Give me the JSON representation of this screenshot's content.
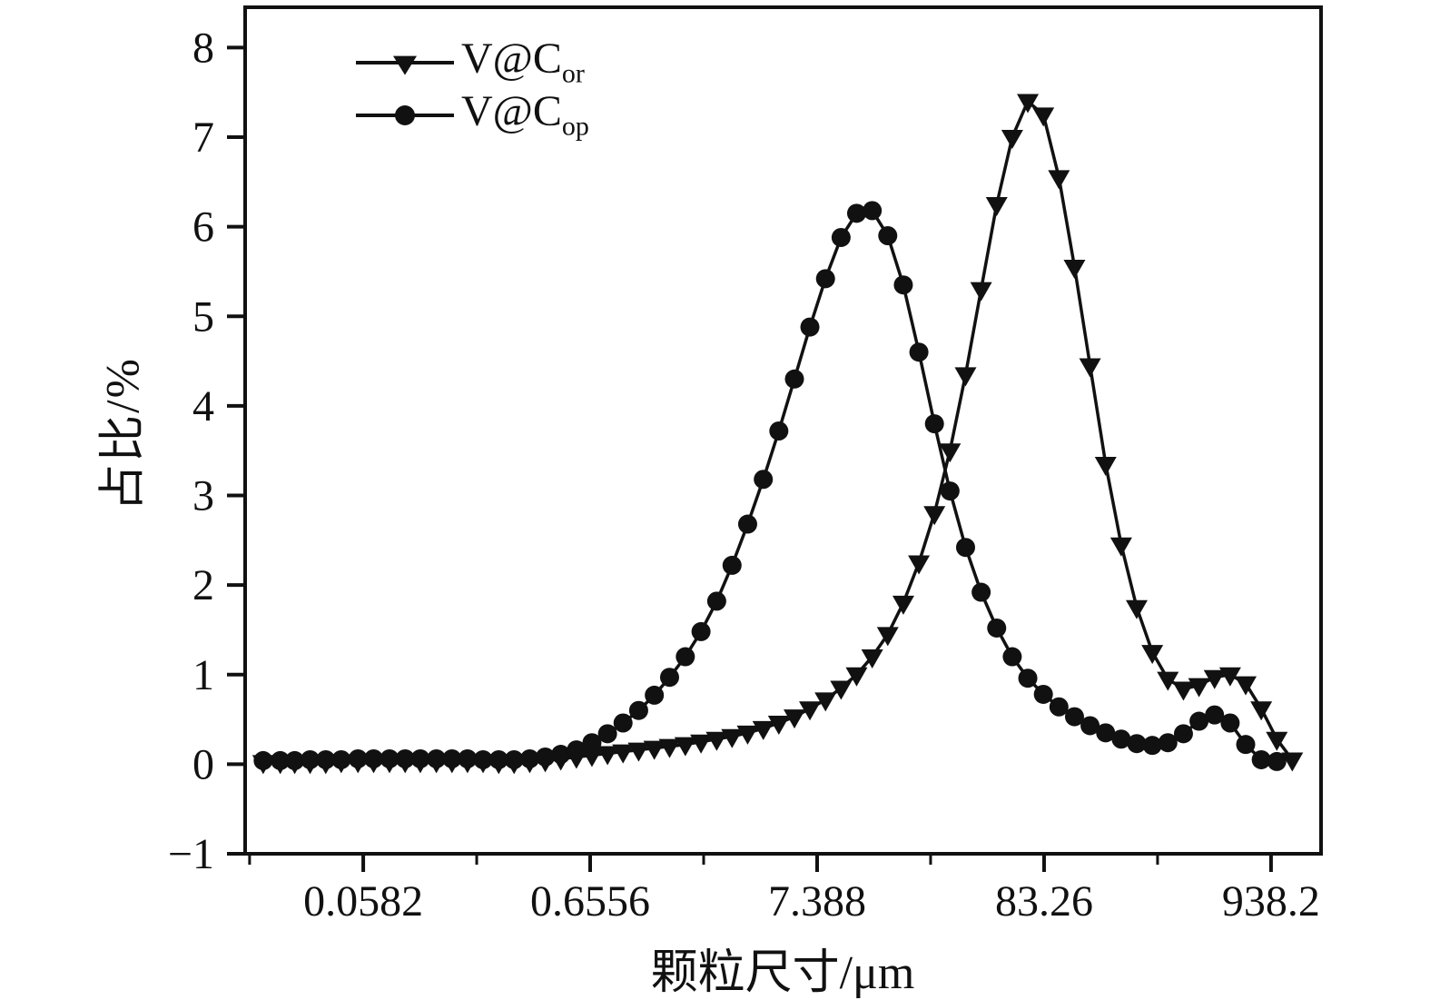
{
  "figure": {
    "background": "#ffffff",
    "line_color": "#111111"
  },
  "chart_data": {
    "type": "line",
    "title": "",
    "xlabel": "颗粒尺寸/μm",
    "ylabel": "占比/%",
    "x_scale": "log",
    "grid": false,
    "legend_position": "top-left",
    "xlim": [
      0.0165,
      1600
    ],
    "ylim": [
      -1,
      8.45
    ],
    "x_ticks": [
      0.0582,
      0.6556,
      7.388,
      83.26,
      938.2
    ],
    "x_tick_labels": [
      "0.0582",
      "0.6556",
      "7.388",
      "83.26",
      "938.2"
    ],
    "x_minor_ticks": [
      0.0173,
      0.1953,
      2.201,
      24.8,
      279.5
    ],
    "y_ticks": [
      -1,
      0,
      1,
      2,
      3,
      4,
      5,
      6,
      7,
      8
    ],
    "y_tick_labels": [
      "−1",
      "0",
      "1",
      "2",
      "3",
      "4",
      "5",
      "6",
      "7",
      "8"
    ],
    "series": [
      {
        "name": "V@C_or",
        "legend_base": "V@C",
        "legend_sub": "or",
        "marker": "triangle-down",
        "color": "#111111",
        "points": [
          [
            0.02,
            0.02
          ],
          [
            0.024,
            0.02
          ],
          [
            0.028,
            0.02
          ],
          [
            0.033,
            0.02
          ],
          [
            0.039,
            0.02
          ],
          [
            0.046,
            0.03
          ],
          [
            0.055,
            0.03
          ],
          [
            0.065,
            0.03
          ],
          [
            0.077,
            0.03
          ],
          [
            0.091,
            0.03
          ],
          [
            0.107,
            0.03
          ],
          [
            0.127,
            0.03
          ],
          [
            0.15,
            0.03
          ],
          [
            0.177,
            0.03
          ],
          [
            0.209,
            0.03
          ],
          [
            0.247,
            0.02
          ],
          [
            0.291,
            0.02
          ],
          [
            0.344,
            0.03
          ],
          [
            0.406,
            0.04
          ],
          [
            0.479,
            0.06
          ],
          [
            0.566,
            0.08
          ],
          [
            0.668,
            0.1
          ],
          [
            0.789,
            0.12
          ],
          [
            0.931,
            0.14
          ],
          [
            1.1,
            0.16
          ],
          [
            1.3,
            0.18
          ],
          [
            1.53,
            0.2
          ],
          [
            1.81,
            0.22
          ],
          [
            2.14,
            0.25
          ],
          [
            2.53,
            0.28
          ],
          [
            2.98,
            0.31
          ],
          [
            3.52,
            0.35
          ],
          [
            4.16,
            0.4
          ],
          [
            4.91,
            0.46
          ],
          [
            5.8,
            0.53
          ],
          [
            6.84,
            0.62
          ],
          [
            8.08,
            0.72
          ],
          [
            9.54,
            0.85
          ],
          [
            11.26,
            1.0
          ],
          [
            13.3,
            1.2
          ],
          [
            15.7,
            1.45
          ],
          [
            18.54,
            1.8
          ],
          [
            21.89,
            2.25
          ],
          [
            25.84,
            2.8
          ],
          [
            30.51,
            3.5
          ],
          [
            36.02,
            4.35
          ],
          [
            42.53,
            5.3
          ],
          [
            50.21,
            6.25
          ],
          [
            59.28,
            7.0
          ],
          [
            69.99,
            7.4
          ],
          [
            82.63,
            7.25
          ],
          [
            97.56,
            6.55
          ],
          [
            115.2,
            5.55
          ],
          [
            136.0,
            4.45
          ],
          [
            160.6,
            3.35
          ],
          [
            189.6,
            2.45
          ],
          [
            223.8,
            1.75
          ],
          [
            264.3,
            1.25
          ],
          [
            312.0,
            0.95
          ],
          [
            368.4,
            0.84
          ],
          [
            435.0,
            0.88
          ],
          [
            513.6,
            0.97
          ],
          [
            606.4,
            1.0
          ],
          [
            715.9,
            0.9
          ],
          [
            845.3,
            0.62
          ],
          [
            998.0,
            0.28
          ],
          [
            1177.0,
            0.05
          ]
        ]
      },
      {
        "name": "V@C_op",
        "legend_base": "V@C",
        "legend_sub": "op",
        "marker": "circle",
        "color": "#111111",
        "points": [
          [
            0.02,
            0.04
          ],
          [
            0.024,
            0.04
          ],
          [
            0.028,
            0.04
          ],
          [
            0.033,
            0.05
          ],
          [
            0.039,
            0.05
          ],
          [
            0.046,
            0.05
          ],
          [
            0.055,
            0.06
          ],
          [
            0.065,
            0.06
          ],
          [
            0.077,
            0.06
          ],
          [
            0.091,
            0.06
          ],
          [
            0.107,
            0.06
          ],
          [
            0.127,
            0.06
          ],
          [
            0.15,
            0.06
          ],
          [
            0.177,
            0.06
          ],
          [
            0.209,
            0.05
          ],
          [
            0.247,
            0.05
          ],
          [
            0.291,
            0.05
          ],
          [
            0.344,
            0.06
          ],
          [
            0.406,
            0.08
          ],
          [
            0.479,
            0.11
          ],
          [
            0.566,
            0.16
          ],
          [
            0.668,
            0.24
          ],
          [
            0.789,
            0.34
          ],
          [
            0.931,
            0.46
          ],
          [
            1.1,
            0.6
          ],
          [
            1.3,
            0.77
          ],
          [
            1.53,
            0.97
          ],
          [
            1.81,
            1.2
          ],
          [
            2.14,
            1.48
          ],
          [
            2.53,
            1.82
          ],
          [
            2.98,
            2.22
          ],
          [
            3.52,
            2.68
          ],
          [
            4.16,
            3.18
          ],
          [
            4.91,
            3.72
          ],
          [
            5.8,
            4.3
          ],
          [
            6.84,
            4.88
          ],
          [
            8.08,
            5.42
          ],
          [
            9.54,
            5.88
          ],
          [
            11.26,
            6.15
          ],
          [
            13.3,
            6.18
          ],
          [
            15.7,
            5.9
          ],
          [
            18.54,
            5.35
          ],
          [
            21.89,
            4.6
          ],
          [
            25.84,
            3.8
          ],
          [
            30.51,
            3.05
          ],
          [
            36.02,
            2.42
          ],
          [
            42.53,
            1.92
          ],
          [
            50.21,
            1.52
          ],
          [
            59.28,
            1.2
          ],
          [
            69.99,
            0.96
          ],
          [
            82.63,
            0.78
          ],
          [
            97.56,
            0.64
          ],
          [
            115.2,
            0.53
          ],
          [
            136.0,
            0.43
          ],
          [
            160.6,
            0.35
          ],
          [
            189.6,
            0.28
          ],
          [
            223.8,
            0.23
          ],
          [
            264.3,
            0.21
          ],
          [
            312.0,
            0.24
          ],
          [
            368.4,
            0.34
          ],
          [
            435.0,
            0.48
          ],
          [
            513.6,
            0.55
          ],
          [
            606.4,
            0.46
          ],
          [
            715.9,
            0.22
          ],
          [
            845.3,
            0.05
          ],
          [
            998.0,
            0.03
          ]
        ]
      }
    ]
  }
}
